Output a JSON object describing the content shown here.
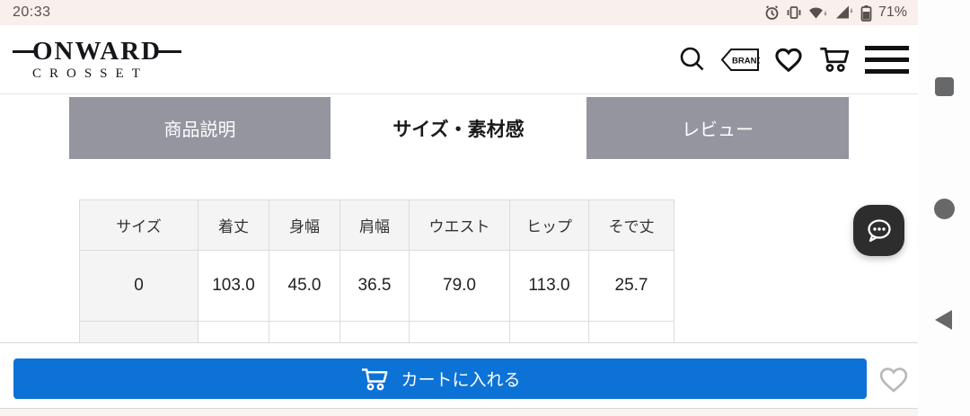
{
  "status_bar": {
    "time": "20:33",
    "battery_percent": "71%",
    "icons": [
      "alarm-icon",
      "vibrate-icon",
      "wifi-icon",
      "cell-signal-icon",
      "battery-icon"
    ]
  },
  "header": {
    "brand_name": "ONWARD",
    "brand_sub": "CROSSET",
    "brand_tag_label": "BRAND"
  },
  "tabs": [
    {
      "label": "商品説明",
      "active": false
    },
    {
      "label": "サイズ・素材感",
      "active": true
    },
    {
      "label": "レビュー",
      "active": false
    }
  ],
  "size_table": {
    "columns": [
      "サイズ",
      "着丈",
      "身幅",
      "肩幅",
      "ウエスト",
      "ヒップ",
      "そで丈"
    ],
    "rows": [
      [
        "0",
        "103.0",
        "45.0",
        "36.5",
        "79.0",
        "113.0",
        "25.7"
      ]
    ],
    "partial_next_row_visible": true
  },
  "bottom_bar": {
    "add_to_cart_label": "カートに入れる"
  },
  "colors": {
    "accent_blue": "#0d72d6",
    "tab_gray": "#94959e",
    "status_bar_bg": "#f9efec",
    "table_header_bg": "#f4f4f4",
    "table_border": "#dcdcdc",
    "fab_bg": "#2e2d2d",
    "nav_shape_gray": "#67686a"
  }
}
